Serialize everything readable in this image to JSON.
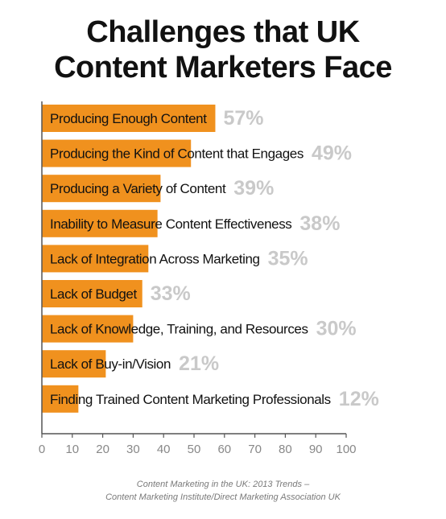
{
  "title": {
    "line1": "Challenges that UK",
    "line2": "Content Marketers Face"
  },
  "source": {
    "line1": "Content Marketing in the UK: 2013 Trends –",
    "line2": "Content Marketing Institute/Direct Marketing Association UK"
  },
  "colors": {
    "bar": "#F0911E",
    "value_label": "#C9C9C9",
    "axis": "#555555",
    "tick_label": "#888888"
  },
  "chart_data": {
    "type": "bar",
    "orientation": "horizontal",
    "title": "Challenges that UK Content Marketers Face",
    "categories": [
      "Producing Enough Content",
      "Producing the Kind of Content that Engages",
      "Producing a Variety of Content",
      "Inability to Measure Content Effectiveness",
      "Lack of Integration Across Marketing",
      "Lack of Budget",
      "Lack of Knowledge, Training, and Resources",
      "Lack of Buy-in/Vision",
      "Finding Trained Content Marketing Professionals"
    ],
    "values": [
      57,
      49,
      39,
      38,
      35,
      33,
      30,
      21,
      12
    ],
    "value_labels": [
      "57%",
      "49%",
      "39%",
      "38%",
      "35%",
      "33%",
      "30%",
      "21%",
      "12%"
    ],
    "xlim": [
      0,
      100
    ],
    "xticks": [
      0,
      10,
      20,
      30,
      40,
      50,
      60,
      70,
      80,
      90,
      100
    ],
    "xlabel": "",
    "ylabel": "",
    "grid": false,
    "legend": "none"
  }
}
